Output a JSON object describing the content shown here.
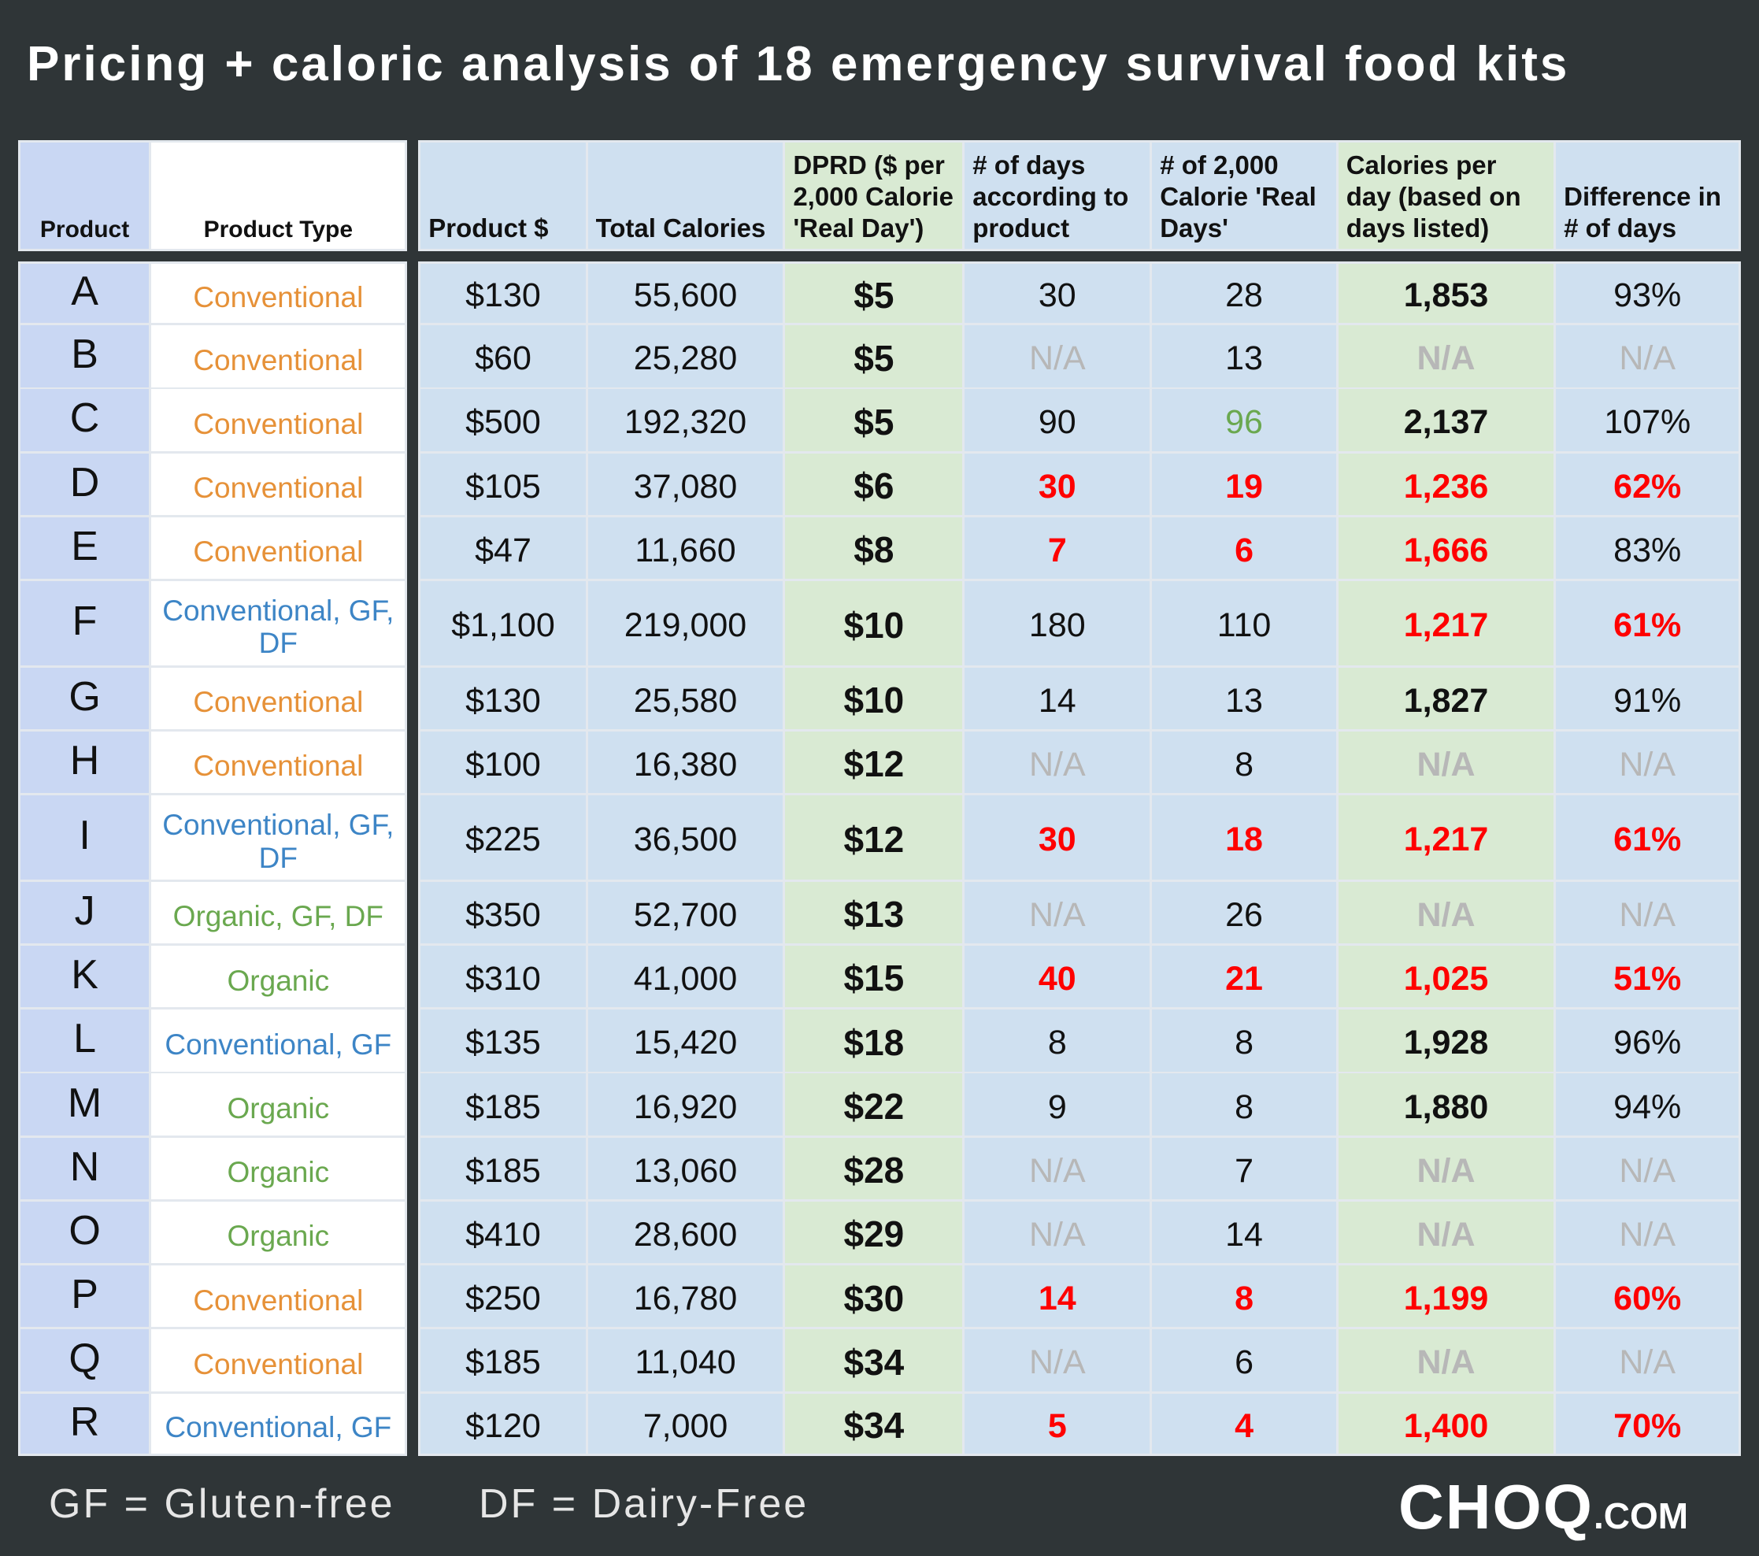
{
  "title": "Pricing + caloric analysis of 18 emergency survival food kits",
  "table": {
    "headers": [
      "Product",
      "Product Type",
      "Product $",
      "Total Calories",
      "DPRD ($ per 2,000 Calorie 'Real Day')",
      "# of days according to product",
      "# of 2,000 Calorie 'Real Days'",
      "Calories per day (based on days listed)",
      "Difference in # of days"
    ],
    "rows": [
      [
        "A",
        "Conventional",
        "$130",
        "55,600",
        "$5",
        "30",
        "28",
        "1,853",
        "93%"
      ],
      [
        "B",
        "Conventional",
        "$60",
        "25,280",
        "$5",
        "N/A",
        "13",
        "N/A",
        "N/A"
      ],
      [
        "C",
        "Conventional",
        "$500",
        "192,320",
        "$5",
        "90",
        "96",
        "2,137",
        "107%"
      ],
      [
        "D",
        "Conventional",
        "$105",
        "37,080",
        "$6",
        "30",
        "19",
        "1,236",
        "62%"
      ],
      [
        "E",
        "Conventional",
        "$47",
        "11,660",
        "$8",
        "7",
        "6",
        "1,666",
        "83%"
      ],
      [
        "F",
        "Conventional, GF, DF",
        "$1,100",
        "219,000",
        "$10",
        "180",
        "110",
        "1,217",
        "61%"
      ],
      [
        "G",
        "Conventional",
        "$130",
        "25,580",
        "$10",
        "14",
        "13",
        "1,827",
        "91%"
      ],
      [
        "H",
        "Conventional",
        "$100",
        "16,380",
        "$12",
        "N/A",
        "8",
        "N/A",
        "N/A"
      ],
      [
        "I",
        "Conventional, GF, DF",
        "$225",
        "36,500",
        "$12",
        "30",
        "18",
        "1,217",
        "61%"
      ],
      [
        "J",
        "Organic, GF, DF",
        "$350",
        "52,700",
        "$13",
        "N/A",
        "26",
        "N/A",
        "N/A"
      ],
      [
        "K",
        "Organic",
        "$310",
        "41,000",
        "$15",
        "40",
        "21",
        "1,025",
        "51%"
      ],
      [
        "L",
        "Conventional, GF",
        "$135",
        "15,420",
        "$18",
        "8",
        "8",
        "1,928",
        "96%"
      ],
      [
        "M",
        "Organic",
        "$185",
        "16,920",
        "$22",
        "9",
        "8",
        "1,880",
        "94%"
      ],
      [
        "N",
        "Organic",
        "$185",
        "13,060",
        "$28",
        "N/A",
        "7",
        "N/A",
        "N/A"
      ],
      [
        "O",
        "Organic",
        "$410",
        "28,600",
        "$29",
        "N/A",
        "14",
        "N/A",
        "N/A"
      ],
      [
        "P",
        "Conventional",
        "$250",
        "16,780",
        "$30",
        "14",
        "8",
        "1,199",
        "60%"
      ],
      [
        "Q",
        "Conventional",
        "$185",
        "11,040",
        "$34",
        "N/A",
        "6",
        "N/A",
        "N/A"
      ],
      [
        "R",
        "Conventional, GF",
        "$120",
        "7,000",
        "$34",
        "5",
        "4",
        "1,400",
        "70%"
      ]
    ],
    "type_colors": [
      "#e69138",
      "#e69138",
      "#e69138",
      "#e69138",
      "#e69138",
      "#3d85c6",
      "#e69138",
      "#e69138",
      "#3d85c6",
      "#6aa84f",
      "#6aa84f",
      "#3d85c6",
      "#6aa84f",
      "#6aa84f",
      "#6aa84f",
      "#e69138",
      "#e69138",
      "#3d85c6"
    ],
    "cell_styles": [
      {
        "color": "#ff0000",
        "bold": true,
        "cells": [
          [
            3,
            5
          ],
          [
            3,
            6
          ],
          [
            3,
            7
          ],
          [
            3,
            8
          ],
          [
            4,
            5
          ],
          [
            4,
            6
          ],
          [
            4,
            7
          ],
          [
            5,
            7
          ],
          [
            5,
            8
          ],
          [
            8,
            5
          ],
          [
            8,
            6
          ],
          [
            8,
            7
          ],
          [
            8,
            8
          ],
          [
            10,
            5
          ],
          [
            10,
            6
          ],
          [
            10,
            7
          ],
          [
            10,
            8
          ],
          [
            15,
            5
          ],
          [
            15,
            6
          ],
          [
            15,
            7
          ],
          [
            15,
            8
          ],
          [
            17,
            5
          ],
          [
            17,
            6
          ],
          [
            17,
            7
          ],
          [
            17,
            8
          ]
        ]
      },
      {
        "color": "#6aa84f",
        "bold": false,
        "cells": [
          [
            2,
            6
          ]
        ]
      },
      {
        "color": "#b7b7b7",
        "bold": false,
        "cells": [
          [
            1,
            5
          ],
          [
            1,
            7
          ],
          [
            1,
            8
          ],
          [
            7,
            5
          ],
          [
            7,
            7
          ],
          [
            7,
            8
          ],
          [
            9,
            5
          ],
          [
            9,
            7
          ],
          [
            9,
            8
          ],
          [
            13,
            5
          ],
          [
            13,
            7
          ],
          [
            13,
            8
          ],
          [
            14,
            5
          ],
          [
            14,
            7
          ],
          [
            14,
            8
          ],
          [
            16,
            5
          ],
          [
            16,
            7
          ],
          [
            16,
            8
          ]
        ]
      }
    ]
  },
  "footer": {
    "legend": [
      "GF = Gluten-free",
      "DF = Dairy-Free"
    ],
    "logo": "CHOQ",
    "logo_suffix": ".COM"
  }
}
